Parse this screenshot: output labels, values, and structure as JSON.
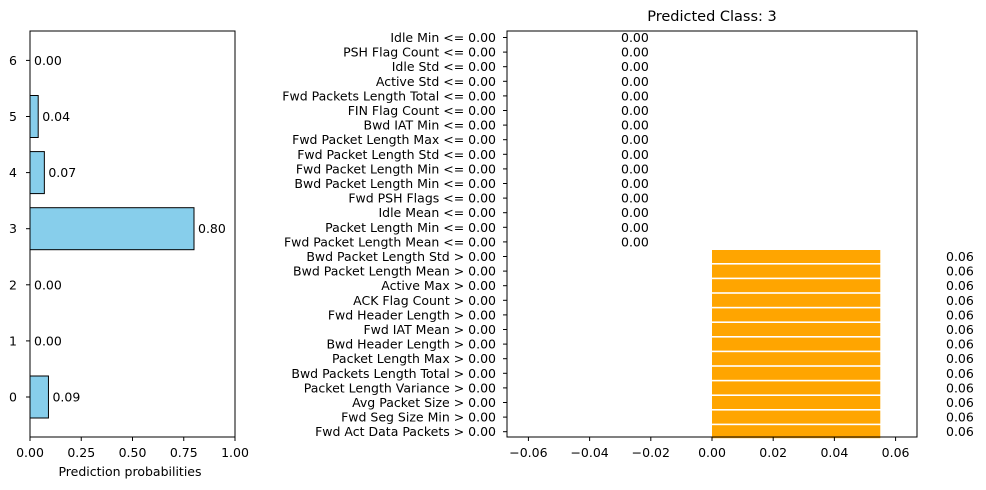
{
  "chart_data": [
    {
      "type": "bar",
      "orientation": "horizontal",
      "categories": [
        "0",
        "1",
        "2",
        "3",
        "4",
        "5",
        "6"
      ],
      "values": [
        0.09,
        0.0,
        0.0,
        0.8,
        0.07,
        0.04,
        0.0
      ],
      "value_labels": [
        "0.09",
        "0.00",
        "0.00",
        "0.80",
        "0.07",
        "0.04",
        "0.00"
      ],
      "xlabel": "Prediction probabilities",
      "xlim": [
        0,
        1
      ],
      "xticks": [
        "0.00",
        "0.25",
        "0.50",
        "0.75",
        "1.00"
      ],
      "xtick_values": [
        0,
        0.25,
        0.5,
        0.75,
        1.0
      ],
      "colors": {
        "bar": "#87ceeb",
        "edge": "#000000"
      },
      "grid": false
    },
    {
      "type": "bar",
      "orientation": "horizontal",
      "title": "Predicted Class: 3",
      "title_color": "#ffa500",
      "categories": [
        "Idle Min <= 0.00",
        "PSH Flag Count <= 0.00",
        "Idle Std <= 0.00",
        "Active Std <= 0.00",
        "Fwd Packets Length Total <= 0.00",
        "FIN Flag Count <= 0.00",
        "Bwd IAT Min <= 0.00",
        "Fwd Packet Length Max <= 0.00",
        "Fwd Packet Length Std <= 0.00",
        "Fwd Packet Length Min <= 0.00",
        "Bwd Packet Length Min <= 0.00",
        "Fwd PSH Flags <= 0.00",
        "Idle Mean <= 0.00",
        "Packet Length Min <= 0.00",
        "Fwd Packet Length Mean <= 0.00",
        "Bwd Packet Length Std > 0.00",
        "Bwd Packet Length Mean > 0.00",
        "Active Max > 0.00",
        "ACK Flag Count > 0.00",
        "Fwd Header Length > 0.00",
        "Fwd IAT Mean > 0.00",
        "Bwd Header Length > 0.00",
        "Packet Length Max > 0.00",
        "Bwd Packets Length Total > 0.00",
        "Packet Length Variance > 0.00",
        "Avg Packet Size > 0.00",
        "Fwd Seg Size Min > 0.00",
        "Fwd Act Data Packets > 0.00"
      ],
      "values": [
        0,
        0,
        0,
        0,
        0,
        0,
        0,
        0,
        0,
        0,
        0,
        0,
        0,
        0,
        0,
        0.055,
        0.055,
        0.055,
        0.055,
        0.055,
        0.055,
        0.055,
        0.055,
        0.055,
        0.055,
        0.055,
        0.055,
        0.055
      ],
      "value_labels": [
        "0.00",
        "0.00",
        "0.00",
        "0.00",
        "0.00",
        "0.00",
        "0.00",
        "0.00",
        "0.00",
        "0.00",
        "0.00",
        "0.00",
        "0.00",
        "0.00",
        "0.00",
        "0.06",
        "0.06",
        "0.06",
        "0.06",
        "0.06",
        "0.06",
        "0.06",
        "0.06",
        "0.06",
        "0.06",
        "0.06",
        "0.06",
        "0.06"
      ],
      "xlim": [
        -0.067,
        0.067
      ],
      "xticks": [
        "−0.06",
        "−0.04",
        "−0.02",
        "0.00",
        "0.02",
        "0.04",
        "0.06"
      ],
      "xtick_values": [
        -0.06,
        -0.04,
        -0.02,
        0,
        0.02,
        0.04,
        0.06
      ],
      "colors": {
        "bar": "#ffa500"
      },
      "grid": false
    }
  ]
}
